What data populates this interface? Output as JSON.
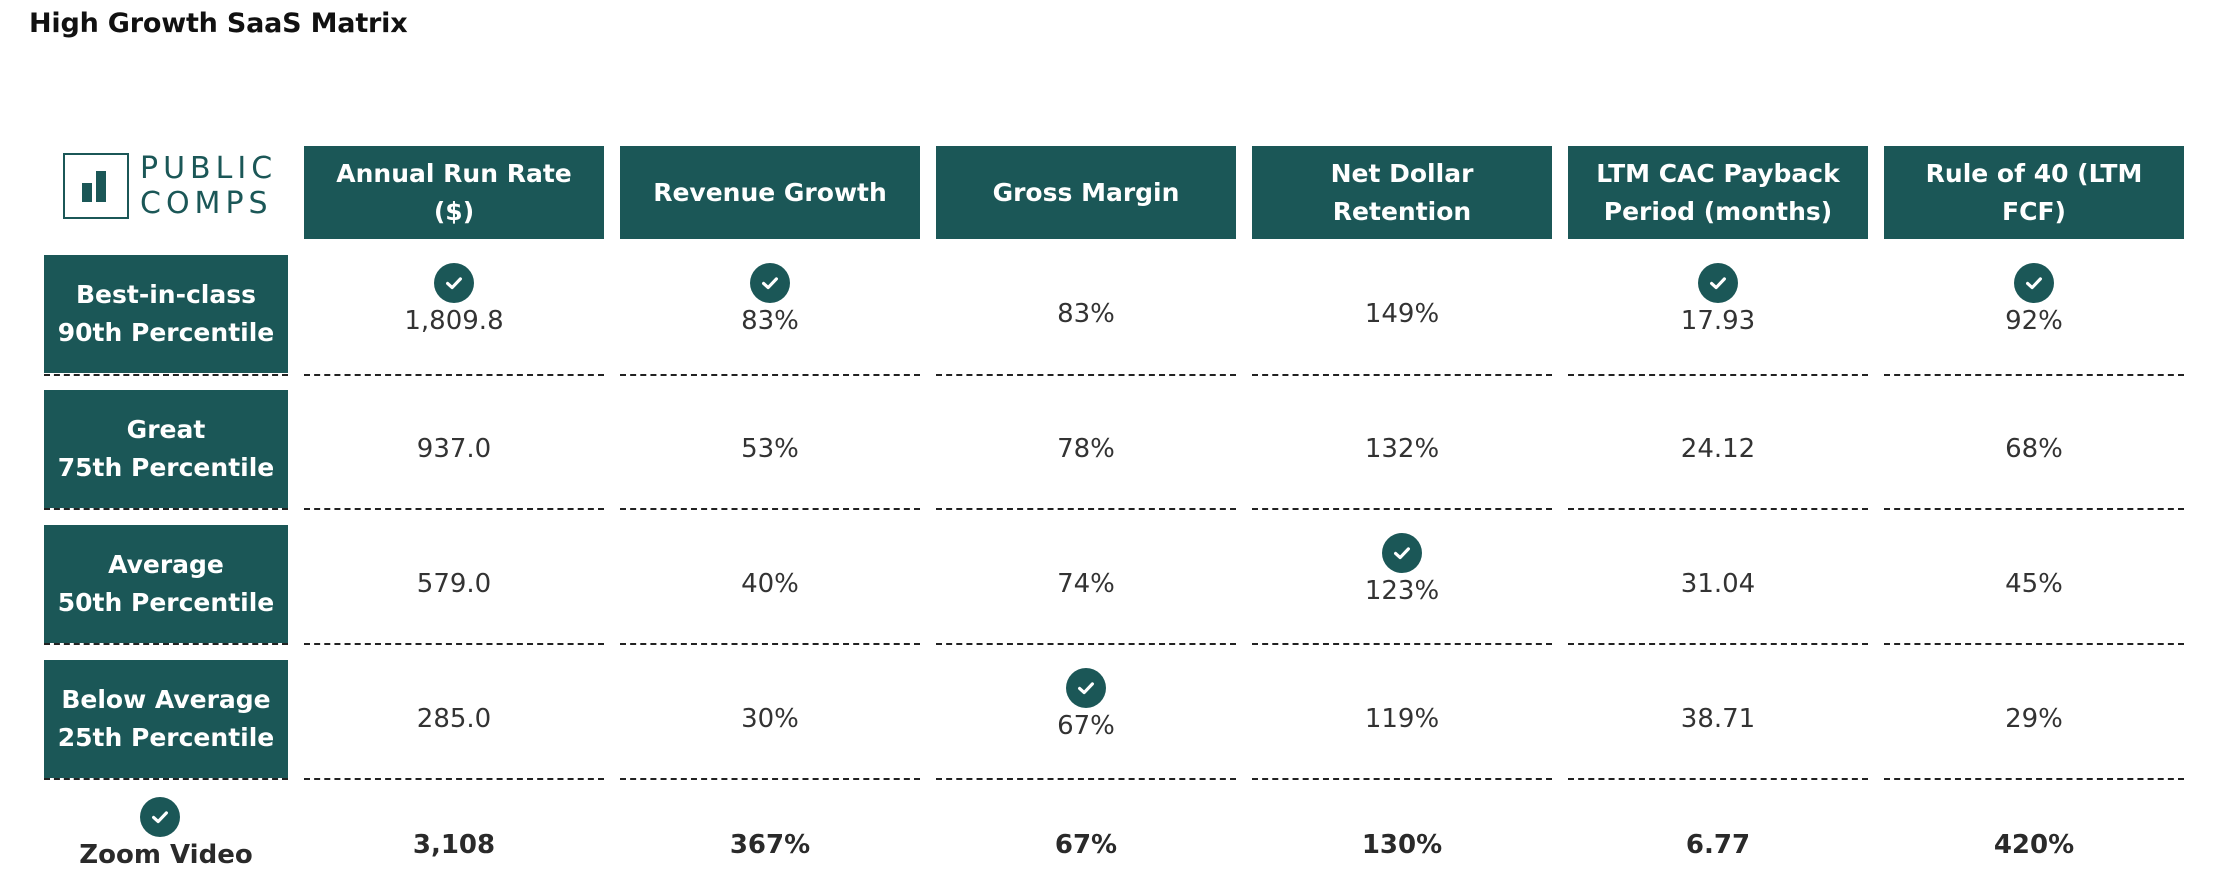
{
  "page": {
    "title": "High Growth SaaS Matrix"
  },
  "logo": {
    "line1": "PUBLIC",
    "line2": "COMPS",
    "icon": "bar-chart-icon"
  },
  "columns": [
    "Annual Run Rate ($)",
    "Revenue Growth",
    "Gross Margin",
    "Net Dollar Retention",
    "LTM CAC Payback Period (months)",
    "Rule of 40 (LTM FCF)"
  ],
  "rows": [
    {
      "line1": "Best-in-class",
      "line2": "90th Percentile",
      "values": [
        "1,809.8",
        "83%",
        "83%",
        "149%",
        "17.93",
        "92%"
      ],
      "checks": [
        true,
        true,
        false,
        false,
        true,
        true
      ]
    },
    {
      "line1": "Great",
      "line2": "75th Percentile",
      "values": [
        "937.0",
        "53%",
        "78%",
        "132%",
        "24.12",
        "68%"
      ],
      "checks": [
        false,
        false,
        false,
        false,
        false,
        false
      ]
    },
    {
      "line1": "Average",
      "line2": "50th Percentile",
      "values": [
        "579.0",
        "40%",
        "74%",
        "123%",
        "31.04",
        "45%"
      ],
      "checks": [
        false,
        false,
        false,
        true,
        false,
        false
      ]
    },
    {
      "line1": "Below Average",
      "line2": "25th Percentile",
      "values": [
        "285.0",
        "30%",
        "67%",
        "119%",
        "38.71",
        "29%"
      ],
      "checks": [
        false,
        false,
        true,
        false,
        false,
        false
      ]
    }
  ],
  "company": {
    "name": "Zoom Video",
    "values": [
      "3,108",
      "367%",
      "67%",
      "130%",
      "6.77",
      "420%"
    ],
    "check": true
  },
  "colors": {
    "accent": "#1b5757",
    "text": "#333333",
    "divider": "#222222"
  }
}
